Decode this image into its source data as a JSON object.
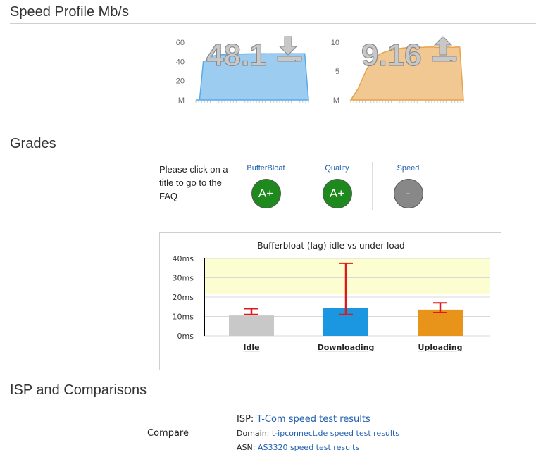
{
  "sections": {
    "speed_profile": "Speed Profile Mb/s",
    "grades": "Grades",
    "isp": "ISP and Comparisons"
  },
  "download": {
    "value_label": "48.1",
    "icon": "download-arrow-icon",
    "color": "#5aaae6",
    "chart_data": {
      "type": "area",
      "title": "",
      "xlabel": "",
      "ylabel": "",
      "yticks": [
        "M",
        "20",
        "40",
        "60"
      ],
      "ylim": [
        0,
        60
      ],
      "values": [
        0,
        0,
        40,
        41,
        45,
        46,
        46.5,
        47,
        47,
        47.3,
        47.5,
        47.6,
        47.7,
        47.8,
        47.9,
        48,
        48,
        48,
        48.1,
        48,
        48.1,
        48,
        48.1,
        48.1,
        48,
        48.1,
        48.1,
        48,
        48.1,
        48.1,
        0
      ]
    }
  },
  "upload": {
    "value_label": "9.16",
    "icon": "upload-arrow-icon",
    "color": "#e8a24a",
    "chart_data": {
      "type": "area",
      "title": "",
      "xlabel": "",
      "ylabel": "",
      "yticks": [
        "M",
        "5",
        "10"
      ],
      "ylim": [
        0,
        10
      ],
      "values": [
        0,
        1,
        2,
        3.5,
        5,
        6.2,
        7,
        7.6,
        8,
        8.3,
        8.5,
        8.7,
        8.8,
        8.9,
        9,
        9.05,
        9.1,
        9.1,
        9.15,
        9.1,
        9.15,
        9.16,
        9.16,
        9.1,
        9.16,
        9.15,
        9.16,
        9.1,
        9.16,
        9.16,
        0
      ]
    }
  },
  "grades": {
    "note": "Please click on a title to go to the FAQ",
    "items": [
      {
        "title": "BufferBloat",
        "grade": "A+",
        "color": "#1e8a1e"
      },
      {
        "title": "Quality",
        "grade": "A+",
        "color": "#1e8a1e"
      },
      {
        "title": "Speed",
        "grade": "-",
        "color": "#888888"
      }
    ]
  },
  "bufferbloat_chart": {
    "chart_data": {
      "type": "bar",
      "title": "Bufferbloat (lag) idle vs under load",
      "categories": [
        "Idle",
        "Downloading",
        "Uploading"
      ],
      "values": [
        10.5,
        14.5,
        13.5
      ],
      "error_low": [
        11,
        11,
        12
      ],
      "error_high": [
        14,
        37.5,
        17
      ],
      "colors": [
        "#c8c8c8",
        "#1a97e0",
        "#e8941a"
      ],
      "yticks": [
        "0ms",
        "10ms",
        "20ms",
        "30ms",
        "40ms"
      ],
      "ylim": [
        0,
        40
      ],
      "highlight_band": [
        21.5,
        40
      ],
      "highlight_color": "#fdfdd2",
      "error_color": "#e01818",
      "grid": true
    }
  },
  "isp": {
    "compare_label": "Compare",
    "isp_prefix": "ISP:",
    "isp_link": "T-Com speed test results",
    "domain_prefix": "Domain:",
    "domain_link": "t-ipconnect.de speed test results",
    "asn_prefix": "ASN:",
    "asn_link": "AS3320 speed test results"
  }
}
